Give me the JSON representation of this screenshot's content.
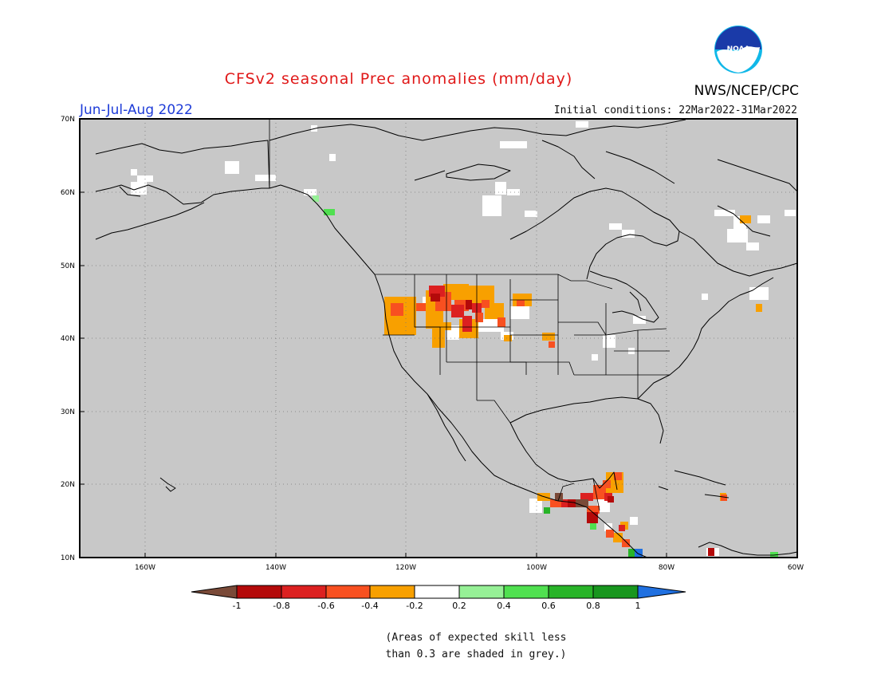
{
  "header": {
    "title": "CFSv2 seasonal Prec anomalies (mm/day)",
    "season": "Jun-Jul-Aug 2022",
    "initial_conditions": "Initial conditions: 22Mar2022-31Mar2022",
    "agency": "NWS/NCEP/CPC",
    "logo_text": "NOAA"
  },
  "map": {
    "lat_labels": [
      "70N",
      "60N",
      "50N",
      "40N",
      "30N",
      "20N",
      "10N"
    ],
    "lon_labels": [
      "160W",
      "140W",
      "120W",
      "100W",
      "80W",
      "60W"
    ],
    "background": "#c8c8c8",
    "region": "North America",
    "lon_range": [
      -170,
      -60
    ],
    "lat_range": [
      10,
      70
    ]
  },
  "colorbar": {
    "tick_labels": [
      "-1",
      "-0.8",
      "-0.6",
      "-0.4",
      "-0.2",
      "0.2",
      "0.4",
      "0.6",
      "0.8",
      "1"
    ],
    "colors": [
      "#7a4a38",
      "#b40a0a",
      "#dc2020",
      "#f85020",
      "#f8a000",
      "#ffffff",
      "#96f096",
      "#50e050",
      "#28b428",
      "#18961e",
      "#2070e0"
    ]
  },
  "footnote": {
    "line1": "(Areas of expected skill less",
    "line2": "than 0.3 are shaded in grey.)"
  }
}
